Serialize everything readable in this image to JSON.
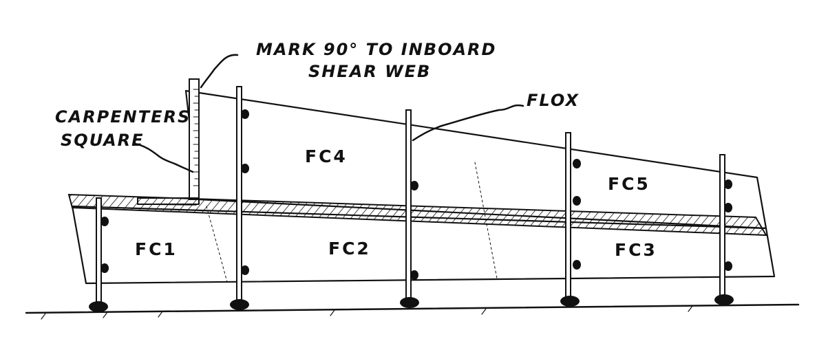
{
  "annotations": {
    "mark_line1": "MARK 90° TO INBOARD",
    "mark_line2": "SHEAR WEB",
    "flox": "FLOX",
    "carpenters_line1": "CARPENTERS",
    "carpenters_line2": "SQUARE"
  },
  "panels": {
    "fc1": "FC1",
    "fc2": "FC2",
    "fc3": "FC3",
    "fc4": "FC4",
    "fc5": "FC5"
  }
}
